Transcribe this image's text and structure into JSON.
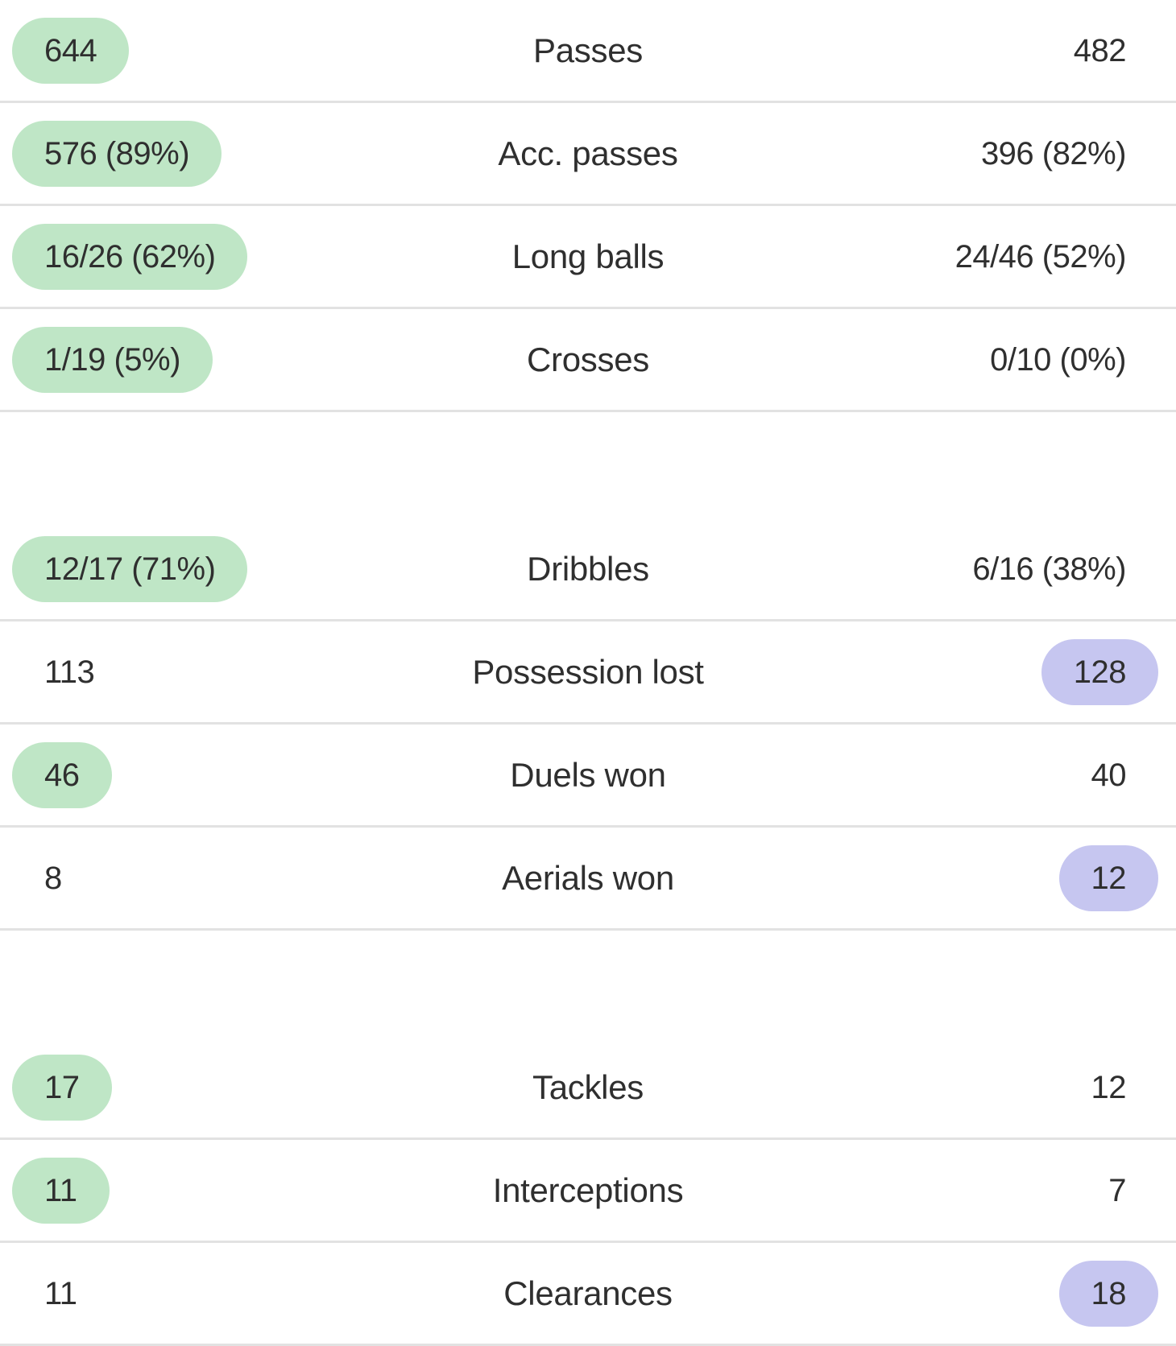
{
  "colors": {
    "home_highlight": "#bfe6c6",
    "away_highlight": "#c6c6f0",
    "divider": "#e2e2e2",
    "text": "#2f2f2f"
  },
  "groups": [
    {
      "rows": [
        {
          "home": "644",
          "label": "Passes",
          "away": "482",
          "winner": "home"
        },
        {
          "home": "576 (89%)",
          "label": "Acc. passes",
          "away": "396 (82%)",
          "winner": "home"
        },
        {
          "home": "16/26 (62%)",
          "label": "Long balls",
          "away": "24/46 (52%)",
          "winner": "home"
        },
        {
          "home": "1/19 (5%)",
          "label": "Crosses",
          "away": "0/10 (0%)",
          "winner": "home"
        }
      ]
    },
    {
      "rows": [
        {
          "home": "12/17 (71%)",
          "label": "Dribbles",
          "away": "6/16 (38%)",
          "winner": "home"
        },
        {
          "home": "113",
          "label": "Possession lost",
          "away": "128",
          "winner": "away"
        },
        {
          "home": "46",
          "label": "Duels won",
          "away": "40",
          "winner": "home"
        },
        {
          "home": "8",
          "label": "Aerials won",
          "away": "12",
          "winner": "away"
        }
      ]
    },
    {
      "rows": [
        {
          "home": "17",
          "label": "Tackles",
          "away": "12",
          "winner": "home"
        },
        {
          "home": "11",
          "label": "Interceptions",
          "away": "7",
          "winner": "home"
        },
        {
          "home": "11",
          "label": "Clearances",
          "away": "18",
          "winner": "away"
        }
      ]
    }
  ]
}
